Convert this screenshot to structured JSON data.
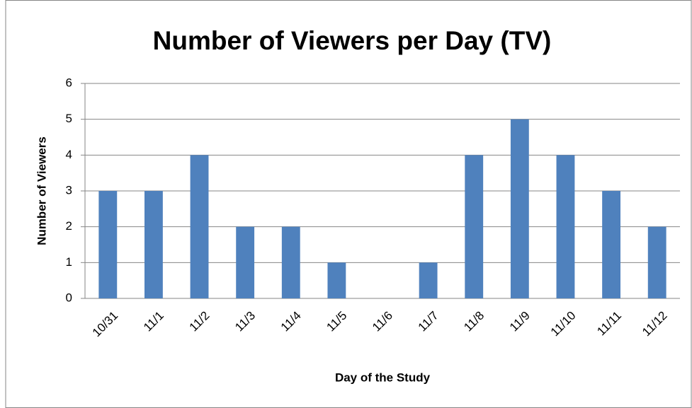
{
  "chart_data": {
    "type": "bar",
    "title": "Number of Viewers per Day (TV)",
    "x_label": "Day of the Study",
    "y_label": "Number of Viewers",
    "categories": [
      "10/31",
      "11/1",
      "11/2",
      "11/3",
      "11/4",
      "11/5",
      "11/6",
      "11/7",
      "11/8",
      "11/9",
      "11/10",
      "11/11",
      "11/12"
    ],
    "values": [
      3,
      3,
      4,
      2,
      2,
      1,
      0,
      1,
      4,
      5,
      4,
      3,
      2
    ],
    "color": "#4f81bd",
    "ylim": [
      0,
      6
    ],
    "yticks": [
      0,
      1,
      2,
      3,
      4,
      5,
      6
    ],
    "grid": true
  }
}
